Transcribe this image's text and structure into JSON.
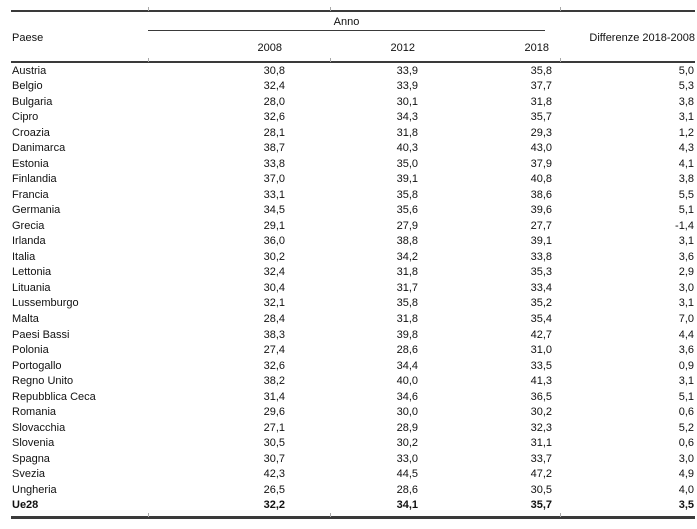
{
  "table": {
    "paese_header": "Paese",
    "anno_header": "Anno",
    "year_headers": [
      "2008",
      "2012",
      "2018"
    ],
    "diff_header": "Differenze 2018-2008",
    "rows": [
      {
        "paese": "Austria",
        "y2008": "30,8",
        "y2012": "33,9",
        "y2018": "35,8",
        "diff": "5,0"
      },
      {
        "paese": "Belgio",
        "y2008": "32,4",
        "y2012": "33,9",
        "y2018": "37,7",
        "diff": "5,3"
      },
      {
        "paese": "Bulgaria",
        "y2008": "28,0",
        "y2012": "30,1",
        "y2018": "31,8",
        "diff": "3,8"
      },
      {
        "paese": "Cipro",
        "y2008": "32,6",
        "y2012": "34,3",
        "y2018": "35,7",
        "diff": "3,1"
      },
      {
        "paese": "Croazia",
        "y2008": "28,1",
        "y2012": "31,8",
        "y2018": "29,3",
        "diff": "1,2"
      },
      {
        "paese": "Danimarca",
        "y2008": "38,7",
        "y2012": "40,3",
        "y2018": "43,0",
        "diff": "4,3"
      },
      {
        "paese": "Estonia",
        "y2008": "33,8",
        "y2012": "35,0",
        "y2018": "37,9",
        "diff": "4,1"
      },
      {
        "paese": "Finlandia",
        "y2008": "37,0",
        "y2012": "39,1",
        "y2018": "40,8",
        "diff": "3,8"
      },
      {
        "paese": "Francia",
        "y2008": "33,1",
        "y2012": "35,8",
        "y2018": "38,6",
        "diff": "5,5"
      },
      {
        "paese": "Germania",
        "y2008": "34,5",
        "y2012": "35,6",
        "y2018": "39,6",
        "diff": "5,1"
      },
      {
        "paese": "Grecia",
        "y2008": "29,1",
        "y2012": "27,9",
        "y2018": "27,7",
        "diff": "-1,4"
      },
      {
        "paese": "Irlanda",
        "y2008": "36,0",
        "y2012": "38,8",
        "y2018": "39,1",
        "diff": "3,1"
      },
      {
        "paese": "Italia",
        "y2008": "30,2",
        "y2012": "34,2",
        "y2018": "33,8",
        "diff": "3,6"
      },
      {
        "paese": "Lettonia",
        "y2008": "32,4",
        "y2012": "31,8",
        "y2018": "35,3",
        "diff": "2,9"
      },
      {
        "paese": "Lituania",
        "y2008": "30,4",
        "y2012": "31,7",
        "y2018": "33,4",
        "diff": "3,0"
      },
      {
        "paese": "Lussemburgo",
        "y2008": "32,1",
        "y2012": "35,8",
        "y2018": "35,2",
        "diff": "3,1"
      },
      {
        "paese": "Malta",
        "y2008": "28,4",
        "y2012": "31,8",
        "y2018": "35,4",
        "diff": "7,0"
      },
      {
        "paese": "Paesi Bassi",
        "y2008": "38,3",
        "y2012": "39,8",
        "y2018": "42,7",
        "diff": "4,4"
      },
      {
        "paese": "Polonia",
        "y2008": "27,4",
        "y2012": "28,6",
        "y2018": "31,0",
        "diff": "3,6"
      },
      {
        "paese": "Portogallo",
        "y2008": "32,6",
        "y2012": "34,4",
        "y2018": "33,5",
        "diff": "0,9"
      },
      {
        "paese": "Regno Unito",
        "y2008": "38,2",
        "y2012": "40,0",
        "y2018": "41,3",
        "diff": "3,1"
      },
      {
        "paese": "Repubblica Ceca",
        "y2008": "31,4",
        "y2012": "34,6",
        "y2018": "36,5",
        "diff": "5,1"
      },
      {
        "paese": "Romania",
        "y2008": "29,6",
        "y2012": "30,0",
        "y2018": "30,2",
        "diff": "0,6"
      },
      {
        "paese": "Slovacchia",
        "y2008": "27,1",
        "y2012": "28,9",
        "y2018": "32,3",
        "diff": "5,2"
      },
      {
        "paese": "Slovenia",
        "y2008": "30,5",
        "y2012": "30,2",
        "y2018": "31,1",
        "diff": "0,6"
      },
      {
        "paese": "Spagna",
        "y2008": "30,7",
        "y2012": "33,0",
        "y2018": "33,7",
        "diff": "3,0"
      },
      {
        "paese": "Svezia",
        "y2008": "42,3",
        "y2012": "44,5",
        "y2018": "47,2",
        "diff": "4,9"
      },
      {
        "paese": "Ungheria",
        "y2008": "26,5",
        "y2012": "28,6",
        "y2018": "30,5",
        "diff": "4,0"
      },
      {
        "paese": "Ue28",
        "y2008": "32,2",
        "y2012": "34,1",
        "y2018": "35,7",
        "diff": "3,5",
        "bold": true
      }
    ]
  },
  "colors": {
    "rule": "#3a3a3a",
    "text": "#111111",
    "tick": "#a8a8a8"
  }
}
